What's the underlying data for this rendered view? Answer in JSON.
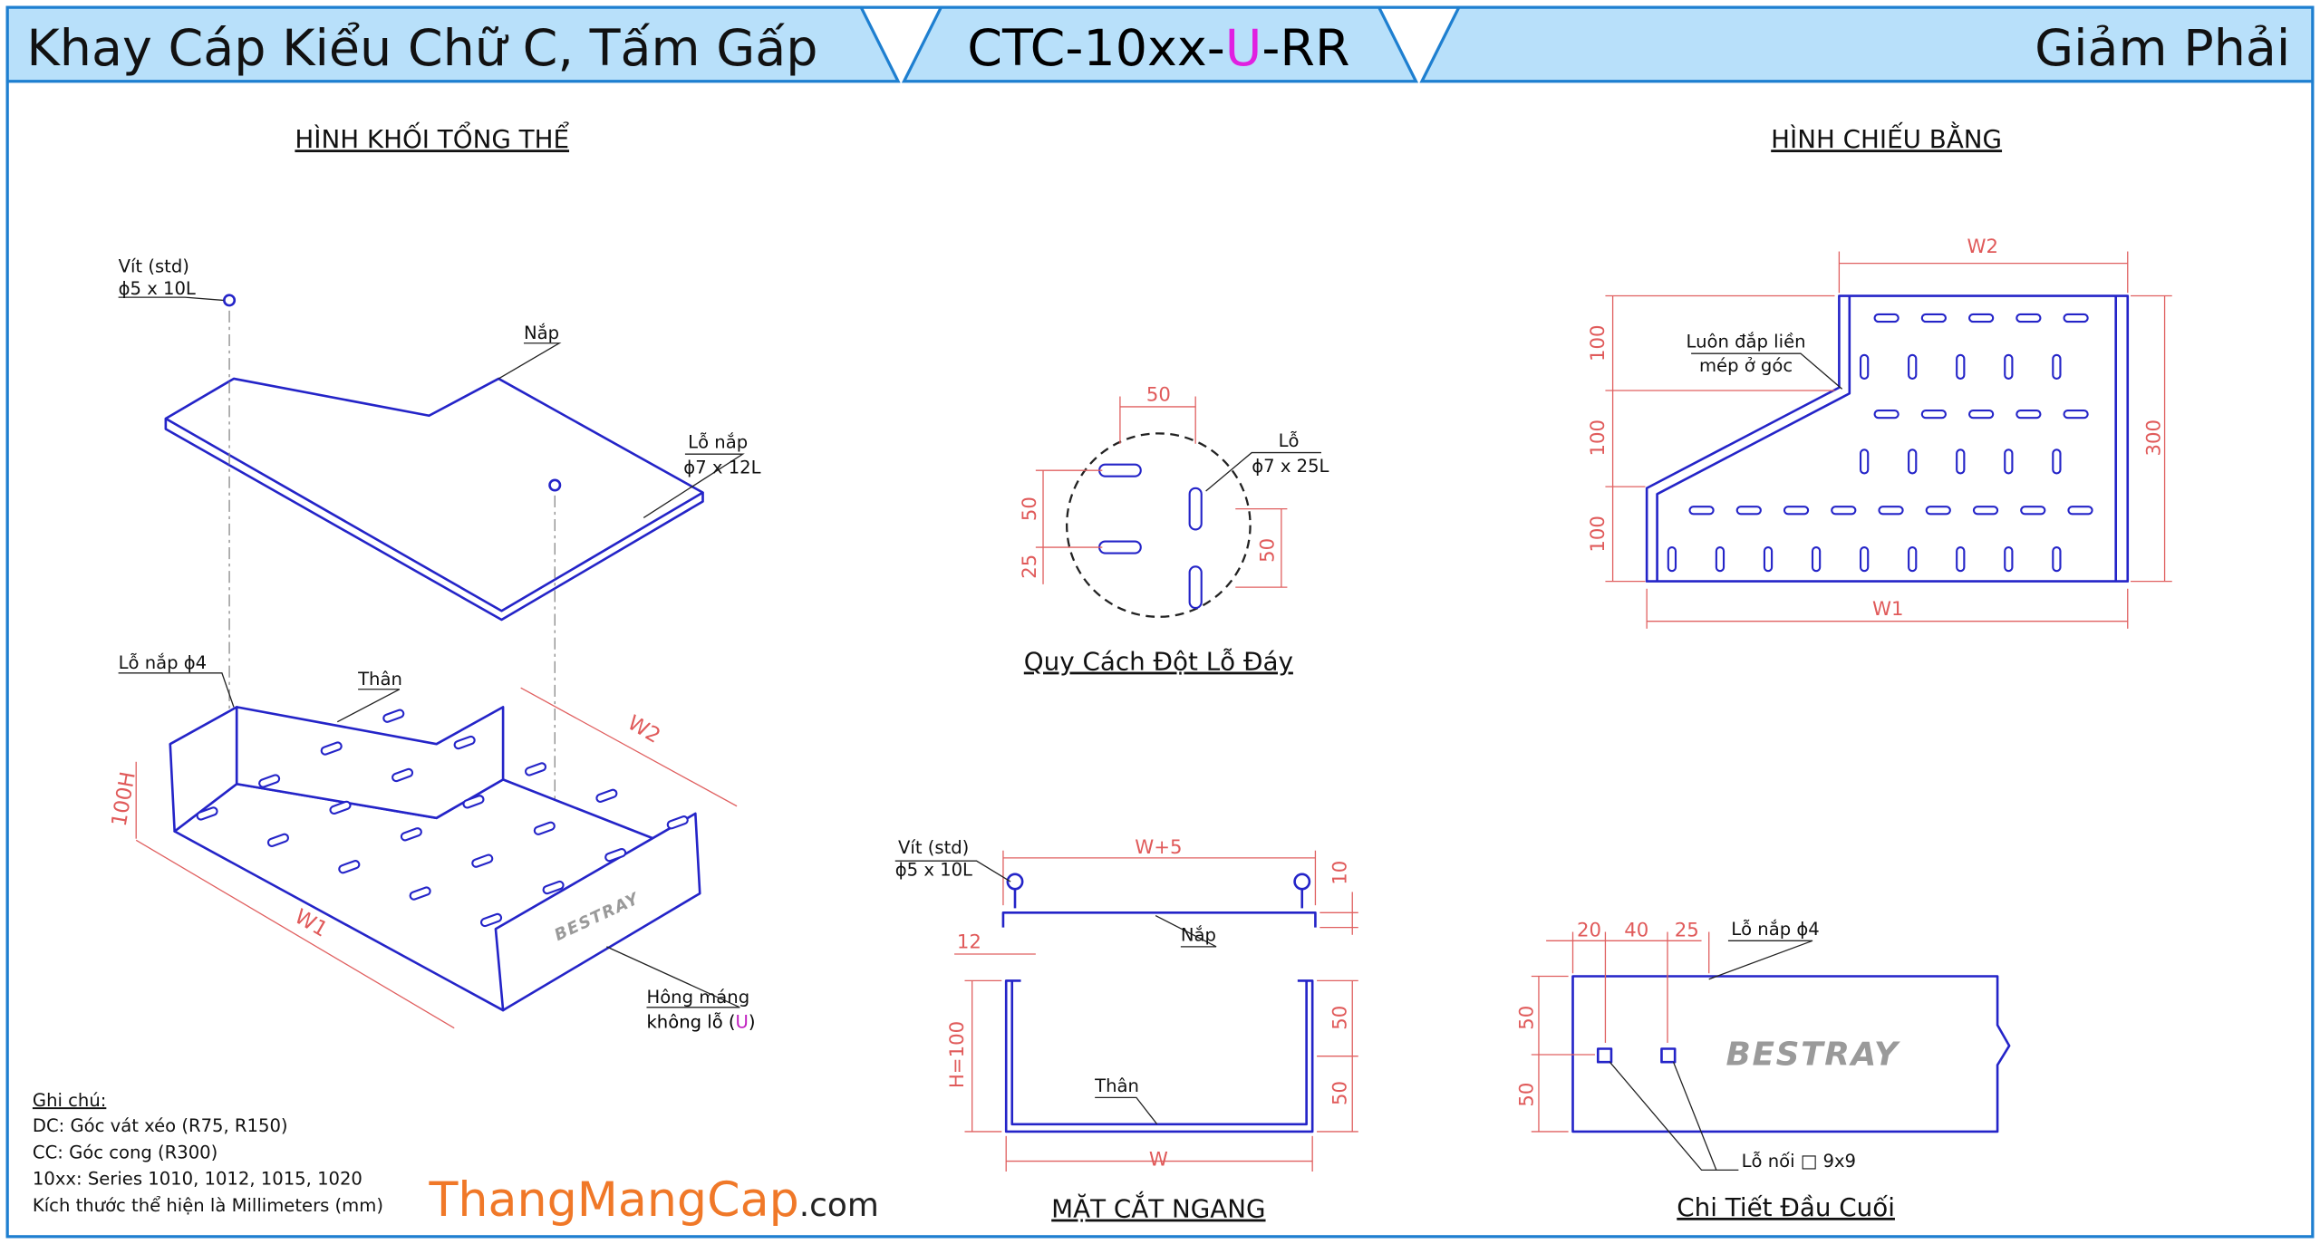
{
  "header": {
    "title": "Khay Cáp Kiểu Chữ C, Tấm Gấp",
    "code_start": "CTC-10xx-",
    "code_mark": "U",
    "code_end": "-RR",
    "side": "Giảm Phải"
  },
  "isometric": {
    "title": "HÌNH KHỐI TỔNG THỂ",
    "screw_label": "Vít (std)",
    "screw_size": "ϕ5 x 10L",
    "lid": "Nắp",
    "lid_hole": "Lỗ nắp",
    "lid_hole_size": "ϕ7 x 12L",
    "lid_hole_body": "Lỗ nắp ϕ4",
    "body": "Thân",
    "width2": "W2",
    "height": "100H",
    "width1": "W1",
    "side_wall": "Hông máng",
    "no_hole_start": "không lỗ (",
    "no_hole_mark": "U",
    "no_hole_end": ")",
    "brand": "BESTRAY"
  },
  "notes": {
    "title": "Ghi chú:",
    "lines": [
      "DC: Góc vát xéo (R75, R150)",
      "CC: Góc cong (R300)",
      "10xx: Series 1010, 1012, 1015, 1020",
      "Kích thước thể hiện là Millimeters (mm)"
    ]
  },
  "website": {
    "name": "ThangMangCap",
    "suffix": ".com"
  },
  "punch_pattern": {
    "title": "Quy Cách Đột Lỗ Đáy",
    "spacing_top": 50,
    "hole": "Lỗ",
    "hole_size": "ϕ7 x 25L",
    "left_upper": 50,
    "left_lower": 25,
    "right": 50
  },
  "plan_view": {
    "title": "HÌNH CHIẾU BẰNG",
    "width2": "W2",
    "note": [
      "Luôn đắp liền",
      "mép ở góc"
    ],
    "steps": [
      100,
      100,
      100
    ],
    "depth": 300,
    "width1": "W1"
  },
  "cross_section": {
    "title": "MẶT CẮT NGANG",
    "screw_label": "Vít (std)",
    "screw_size": "ϕ5 x 10L",
    "lid_width": "W+5",
    "lid_height": 10,
    "lid": "Nắp",
    "lip": 12,
    "height": "H=100",
    "upper": 50,
    "lower": 50,
    "body": "Thân",
    "width": "W"
  },
  "end_detail": {
    "title": "Chi Tiết Đầu Cuối",
    "offsets": [
      20,
      40,
      25
    ],
    "lid_hole": "Lỗ nắp ϕ4",
    "rows": [
      50,
      50
    ],
    "brand": "BESTRAY",
    "joint_hole": "Lỗ nối □ 9x9"
  }
}
